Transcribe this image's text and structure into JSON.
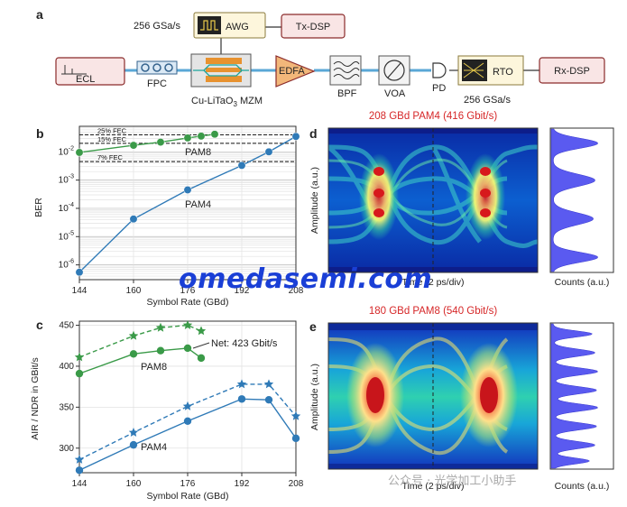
{
  "panel_a": {
    "letter": "a",
    "sample_rate_tx": "256 GSa/s",
    "awg": "AWG",
    "tx_dsp": "Tx-DSP",
    "ecl": "ECL",
    "fpc": "FPC",
    "mzm": "Cu-LiTaO",
    "mzm_sub": "3",
    "mzm_suffix": " MZM",
    "edfa": "EDFA",
    "bpf": "BPF",
    "voa": "VOA",
    "pd": "PD",
    "rto": "RTO",
    "rx_dsp": "Rx-DSP",
    "sample_rate_rx": "256 GSa/s"
  },
  "panel_b": {
    "letter": "b",
    "fec_labels": [
      "25% FEC",
      "15% FEC",
      "7% FEC"
    ],
    "pam8_label": "PAM8",
    "pam4_label": "PAM4"
  },
  "panel_c": {
    "letter": "c",
    "net_label": "Net: 423 Gbit/s",
    "pam8_label": "PAM8",
    "pam4_label": "PAM4"
  },
  "panel_d": {
    "letter": "d",
    "title": "208 GBd PAM4 (416 Gbit/s)",
    "ylabel": "Amplitude (a.u.)",
    "xlabel": "Time (2 ps/div)",
    "counts": "Counts (a.u.)"
  },
  "panel_e": {
    "letter": "e",
    "title": "180 GBd PAM8 (540 Gbit/s)",
    "ylabel": "Amplitude (a.u.)",
    "xlabel": "Time (2 ps/div)",
    "counts": "Counts (a.u.)"
  },
  "watermark": "omedasemi.com",
  "watermark_cn": "公众号 · 光学加工小助手",
  "colors": {
    "pam4": "#2f7ab7",
    "pam8": "#3a9a48",
    "title_red": "#d62728"
  },
  "chart_data": [
    {
      "type": "line",
      "panel": "b",
      "title": "",
      "xlabel": "Symbol Rate (GBd)",
      "ylabel": "BER",
      "xlim": [
        144,
        208
      ],
      "x_ticks": [
        144,
        160,
        176,
        192,
        208
      ],
      "ylim": [
        3e-07,
        0.08
      ],
      "y_scale": "log",
      "y_ticks": [
        "10^-2",
        "10^-3",
        "10^-4",
        "10^-5",
        "10^-6"
      ],
      "grid": true,
      "series": [
        {
          "name": "PAM4",
          "x": [
            144,
            160,
            176,
            192,
            200,
            208
          ],
          "y": [
            5.5e-07,
            4.2e-05,
            0.00045,
            0.0033,
            0.01,
            0.035
          ]
        },
        {
          "name": "PAM8",
          "x": [
            144,
            160,
            168,
            176,
            180,
            184
          ],
          "y": [
            0.0095,
            0.017,
            0.022,
            0.031,
            0.036,
            0.042
          ]
        }
      ],
      "thresholds": [
        {
          "label": "25% FEC",
          "y": 0.04
        },
        {
          "label": "15% FEC",
          "y": 0.02
        },
        {
          "label": "7% FEC",
          "y": 0.0045
        }
      ]
    },
    {
      "type": "line",
      "panel": "c",
      "title": "",
      "xlabel": "Symbol Rate (GBd)",
      "ylabel": "AIR / NDR in GBit/s",
      "xlim": [
        144,
        208
      ],
      "x_ticks": [
        144,
        160,
        176,
        192,
        208
      ],
      "ylim": [
        270,
        455
      ],
      "y_ticks": [
        300,
        350,
        400,
        450
      ],
      "grid": true,
      "series": [
        {
          "name": "PAM8 AIR",
          "style": "dashed",
          "marker": "star",
          "x": [
            144,
            160,
            168,
            176,
            180
          ],
          "y": [
            411,
            437,
            447,
            450,
            443
          ]
        },
        {
          "name": "PAM8 NDR",
          "style": "solid",
          "marker": "circle",
          "x": [
            144,
            160,
            168,
            176,
            180
          ],
          "y": [
            391,
            415,
            419,
            422,
            410
          ]
        },
        {
          "name": "PAM4 AIR",
          "style": "dashed",
          "marker": "star",
          "x": [
            144,
            160,
            176,
            192,
            200,
            208
          ],
          "y": [
            286,
            319,
            351,
            378,
            378,
            339
          ]
        },
        {
          "name": "PAM4 NDR",
          "style": "solid",
          "marker": "circle",
          "x": [
            144,
            160,
            176,
            192,
            200,
            208
          ],
          "y": [
            273,
            304,
            333,
            360,
            359,
            312
          ]
        }
      ]
    }
  ]
}
